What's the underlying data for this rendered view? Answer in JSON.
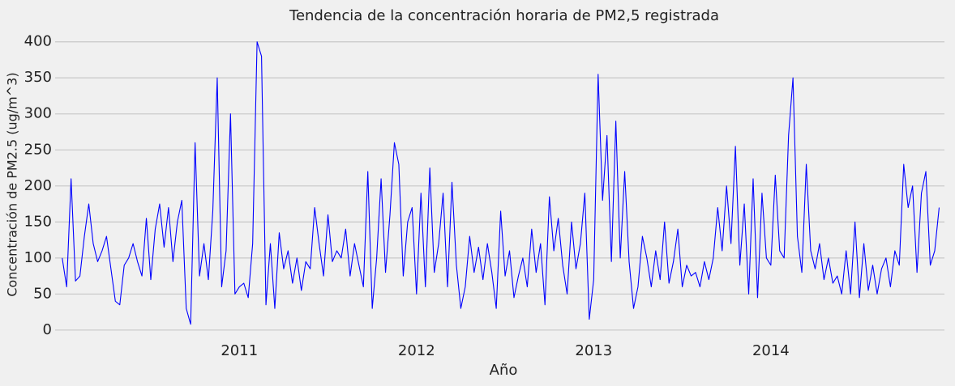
{
  "chart_data": {
    "type": "line",
    "title": "Tendencia de la concentración horaria de PM2,5 registrada",
    "x_label": "Año",
    "y_label": "Concentración de PM2.5  (ug/m^3)",
    "color": "#0000ff",
    "grid": true,
    "xlim": [
      2009.96,
      2014.98
    ],
    "xticks": [
      2011,
      2012,
      2013,
      2014
    ],
    "ylim": [
      -8,
      412
    ],
    "yticks": [
      0,
      50,
      100,
      150,
      200,
      250,
      300,
      350,
      400
    ],
    "x": [
      2010,
      2010.025,
      2010.05,
      2010.075,
      2010.1,
      2010.125,
      2010.15,
      2010.175,
      2010.2,
      2010.225,
      2010.25,
      2010.275,
      2010.3,
      2010.325,
      2010.35,
      2010.375,
      2010.4,
      2010.425,
      2010.45,
      2010.475,
      2010.5,
      2010.525,
      2010.55,
      2010.575,
      2010.6,
      2010.625,
      2010.65,
      2010.675,
      2010.7,
      2010.725,
      2010.75,
      2010.775,
      2010.8,
      2010.825,
      2010.85,
      2010.875,
      2010.9,
      2010.925,
      2010.95,
      2010.975,
      2011,
      2011.025,
      2011.05,
      2011.075,
      2011.1,
      2011.125,
      2011.15,
      2011.175,
      2011.2,
      2011.225,
      2011.25,
      2011.275,
      2011.3,
      2011.325,
      2011.35,
      2011.375,
      2011.4,
      2011.425,
      2011.45,
      2011.475,
      2011.5,
      2011.525,
      2011.55,
      2011.575,
      2011.6,
      2011.625,
      2011.65,
      2011.675,
      2011.7,
      2011.725,
      2011.75,
      2011.775,
      2011.8,
      2011.825,
      2011.85,
      2011.875,
      2011.9,
      2011.925,
      2011.95,
      2011.975,
      2012,
      2012.025,
      2012.05,
      2012.075,
      2012.1,
      2012.125,
      2012.15,
      2012.175,
      2012.2,
      2012.225,
      2012.25,
      2012.275,
      2012.3,
      2012.325,
      2012.35,
      2012.375,
      2012.4,
      2012.425,
      2012.45,
      2012.475,
      2012.5,
      2012.525,
      2012.55,
      2012.575,
      2012.6,
      2012.625,
      2012.65,
      2012.675,
      2012.7,
      2012.725,
      2012.75,
      2012.775,
      2012.8,
      2012.825,
      2012.85,
      2012.875,
      2012.9,
      2012.925,
      2012.95,
      2012.975,
      2013,
      2013.025,
      2013.05,
      2013.075,
      2013.1,
      2013.125,
      2013.15,
      2013.175,
      2013.2,
      2013.225,
      2013.25,
      2013.275,
      2013.3,
      2013.325,
      2013.35,
      2013.375,
      2013.4,
      2013.425,
      2013.45,
      2013.475,
      2013.5,
      2013.525,
      2013.55,
      2013.575,
      2013.6,
      2013.625,
      2013.65,
      2013.675,
      2013.7,
      2013.725,
      2013.75,
      2013.775,
      2013.8,
      2013.825,
      2013.85,
      2013.875,
      2013.9,
      2013.925,
      2013.95,
      2013.975,
      2014,
      2014.025,
      2014.05,
      2014.075,
      2014.1,
      2014.125,
      2014.15,
      2014.175,
      2014.2,
      2014.225,
      2014.25,
      2014.275,
      2014.3,
      2014.325,
      2014.35,
      2014.375,
      2014.4,
      2014.425,
      2014.45,
      2014.475,
      2014.5,
      2014.525,
      2014.55,
      2014.575,
      2014.6,
      2014.625,
      2014.65,
      2014.675,
      2014.7,
      2014.725,
      2014.75,
      2014.775,
      2014.8,
      2014.825,
      2014.85,
      2014.875,
      2014.9,
      2014.925,
      2014.95
    ],
    "values": [
      100,
      60,
      210,
      68,
      75,
      130,
      175,
      120,
      95,
      110,
      130,
      85,
      40,
      35,
      90,
      100,
      120,
      95,
      75,
      155,
      70,
      140,
      175,
      115,
      170,
      95,
      150,
      180,
      30,
      8,
      260,
      75,
      120,
      70,
      165,
      350,
      60,
      110,
      300,
      50,
      60,
      65,
      45,
      120,
      400,
      380,
      35,
      120,
      30,
      135,
      85,
      110,
      65,
      100,
      55,
      95,
      85,
      170,
      120,
      75,
      160,
      95,
      110,
      100,
      140,
      75,
      120,
      90,
      60,
      220,
      30,
      100,
      210,
      80,
      160,
      260,
      230,
      75,
      150,
      170,
      50,
      190,
      60,
      225,
      80,
      120,
      190,
      60,
      205,
      90,
      30,
      60,
      130,
      80,
      115,
      70,
      120,
      80,
      30,
      165,
      75,
      110,
      45,
      75,
      100,
      60,
      140,
      80,
      120,
      35,
      185,
      110,
      155,
      90,
      50,
      150,
      85,
      120,
      190,
      15,
      70,
      355,
      180,
      270,
      95,
      290,
      100,
      220,
      95,
      30,
      60,
      130,
      100,
      60,
      110,
      70,
      150,
      65,
      95,
      140,
      60,
      90,
      75,
      80,
      60,
      95,
      70,
      100,
      170,
      110,
      200,
      120,
      255,
      90,
      175,
      50,
      210,
      45,
      190,
      100,
      90,
      215,
      110,
      100,
      270,
      350,
      130,
      80,
      230,
      110,
      85,
      120,
      70,
      100,
      65,
      75,
      50,
      110,
      50,
      150,
      45,
      120,
      55,
      90,
      50,
      85,
      100,
      60,
      110,
      90,
      230,
      170,
      200,
      80,
      190,
      220,
      90,
      110,
      170
    ]
  }
}
